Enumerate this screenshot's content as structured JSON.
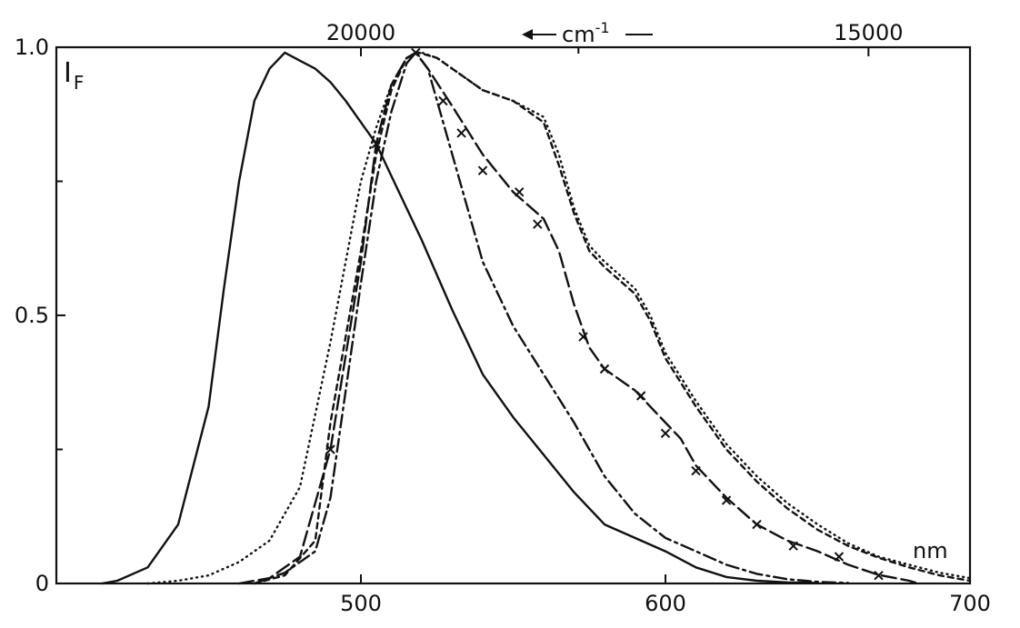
{
  "chart_data": {
    "type": "line",
    "ylabel": "I",
    "ylabel_sub": "F",
    "xlabel": "nm",
    "top_axis_label": "cm",
    "top_axis_label_sup": "-1",
    "xlim": [
      400,
      700
    ],
    "ylim": [
      0,
      1.0
    ],
    "x_ticks": [
      {
        "value": 500,
        "label": "500"
      },
      {
        "value": 600,
        "label": "600"
      },
      {
        "value": 700,
        "label": "700"
      }
    ],
    "y_ticks": [
      {
        "value": 0,
        "label": "0"
      },
      {
        "value": 0.5,
        "label": "0.5"
      },
      {
        "value": 1.0,
        "label": "1.0"
      }
    ],
    "y_minor_ticks": [
      0.25,
      0.75
    ],
    "top_ticks": [
      {
        "value": 20000,
        "label": "20000"
      },
      {
        "value": 15000,
        "label": "15000"
      }
    ],
    "top_minor_ticks": [
      17500
    ],
    "series": [
      {
        "style": "solid",
        "points": [
          [
            415,
            0
          ],
          [
            420,
            0.005
          ],
          [
            430,
            0.03
          ],
          [
            440,
            0.11
          ],
          [
            450,
            0.33
          ],
          [
            455,
            0.55
          ],
          [
            460,
            0.75
          ],
          [
            465,
            0.9
          ],
          [
            470,
            0.96
          ],
          [
            475,
            0.99
          ],
          [
            480,
            0.975
          ],
          [
            485,
            0.96
          ],
          [
            490,
            0.935
          ],
          [
            495,
            0.9
          ],
          [
            500,
            0.86
          ],
          [
            505,
            0.82
          ],
          [
            510,
            0.76
          ],
          [
            520,
            0.64
          ],
          [
            530,
            0.51
          ],
          [
            540,
            0.39
          ],
          [
            550,
            0.31
          ],
          [
            560,
            0.24
          ],
          [
            570,
            0.17
          ],
          [
            580,
            0.11
          ],
          [
            590,
            0.085
          ],
          [
            600,
            0.06
          ],
          [
            610,
            0.03
          ],
          [
            620,
            0.012
          ],
          [
            630,
            0.005
          ],
          [
            640,
            0.002
          ],
          [
            650,
            0.001
          ]
        ]
      },
      {
        "style": "dashdot",
        "points": [
          [
            465,
            0
          ],
          [
            475,
            0.02
          ],
          [
            485,
            0.06
          ],
          [
            490,
            0.16
          ],
          [
            495,
            0.36
          ],
          [
            500,
            0.56
          ],
          [
            505,
            0.75
          ],
          [
            510,
            0.88
          ],
          [
            515,
            0.97
          ],
          [
            518,
            0.99
          ],
          [
            522,
            0.96
          ],
          [
            530,
            0.8
          ],
          [
            540,
            0.6
          ],
          [
            550,
            0.48
          ],
          [
            560,
            0.39
          ],
          [
            570,
            0.3
          ],
          [
            580,
            0.2
          ],
          [
            590,
            0.13
          ],
          [
            600,
            0.085
          ],
          [
            610,
            0.06
          ],
          [
            620,
            0.035
          ],
          [
            630,
            0.018
          ],
          [
            640,
            0.008
          ],
          [
            650,
            0.003
          ],
          [
            660,
            0.001
          ]
        ]
      },
      {
        "style": "dashed-x",
        "points": [
          [
            460,
            0
          ],
          [
            470,
            0.01
          ],
          [
            480,
            0.05
          ],
          [
            490,
            0.25
          ],
          [
            500,
            0.6
          ],
          [
            505,
            0.82
          ],
          [
            510,
            0.93
          ],
          [
            515,
            0.98
          ],
          [
            518,
            0.99
          ],
          [
            522,
            0.96
          ],
          [
            530,
            0.89
          ],
          [
            540,
            0.8
          ],
          [
            550,
            0.73
          ],
          [
            560,
            0.68
          ],
          [
            565,
            0.62
          ],
          [
            570,
            0.52
          ],
          [
            575,
            0.44
          ],
          [
            580,
            0.4
          ],
          [
            590,
            0.36
          ],
          [
            600,
            0.3
          ],
          [
            605,
            0.27
          ],
          [
            610,
            0.22
          ],
          [
            620,
            0.16
          ],
          [
            630,
            0.11
          ],
          [
            640,
            0.08
          ],
          [
            650,
            0.06
          ],
          [
            660,
            0.035
          ],
          [
            670,
            0.016
          ],
          [
            680,
            0.005
          ],
          [
            683,
            0
          ]
        ],
        "markers": [
          [
            490,
            0.25
          ],
          [
            505,
            0.82
          ],
          [
            518,
            0.99
          ],
          [
            527,
            0.9
          ],
          [
            533,
            0.84
          ],
          [
            540,
            0.77
          ],
          [
            552,
            0.73
          ],
          [
            558,
            0.67
          ],
          [
            573,
            0.46
          ],
          [
            580,
            0.4
          ],
          [
            592,
            0.35
          ],
          [
            600,
            0.28
          ],
          [
            610,
            0.21
          ],
          [
            620,
            0.155
          ],
          [
            630,
            0.11
          ],
          [
            642,
            0.07
          ],
          [
            657,
            0.05
          ],
          [
            670,
            0.015
          ]
        ]
      },
      {
        "style": "dotted",
        "points": [
          [
            430,
            0
          ],
          [
            440,
            0.005
          ],
          [
            450,
            0.015
          ],
          [
            460,
            0.04
          ],
          [
            470,
            0.08
          ],
          [
            480,
            0.18
          ],
          [
            490,
            0.45
          ],
          [
            500,
            0.75
          ],
          [
            505,
            0.85
          ],
          [
            510,
            0.93
          ],
          [
            515,
            0.98
          ],
          [
            520,
            0.99
          ],
          [
            525,
            0.98
          ],
          [
            530,
            0.96
          ],
          [
            540,
            0.92
          ],
          [
            550,
            0.9
          ],
          [
            560,
            0.87
          ],
          [
            565,
            0.8
          ],
          [
            570,
            0.7
          ],
          [
            575,
            0.63
          ],
          [
            580,
            0.6
          ],
          [
            590,
            0.55
          ],
          [
            595,
            0.5
          ],
          [
            600,
            0.43
          ],
          [
            610,
            0.34
          ],
          [
            620,
            0.26
          ],
          [
            630,
            0.2
          ],
          [
            640,
            0.15
          ],
          [
            650,
            0.11
          ],
          [
            660,
            0.075
          ],
          [
            670,
            0.05
          ],
          [
            680,
            0.035
          ],
          [
            690,
            0.02
          ],
          [
            700,
            0.01
          ]
        ]
      },
      {
        "style": "dashed",
        "points": [
          [
            465,
            0
          ],
          [
            475,
            0.015
          ],
          [
            485,
            0.08
          ],
          [
            490,
            0.3
          ],
          [
            500,
            0.62
          ],
          [
            505,
            0.8
          ],
          [
            510,
            0.92
          ],
          [
            515,
            0.98
          ],
          [
            519,
            0.99
          ],
          [
            525,
            0.98
          ],
          [
            530,
            0.96
          ],
          [
            540,
            0.92
          ],
          [
            550,
            0.9
          ],
          [
            560,
            0.86
          ],
          [
            565,
            0.78
          ],
          [
            570,
            0.69
          ],
          [
            575,
            0.62
          ],
          [
            580,
            0.59
          ],
          [
            590,
            0.54
          ],
          [
            595,
            0.49
          ],
          [
            600,
            0.42
          ],
          [
            610,
            0.33
          ],
          [
            620,
            0.25
          ],
          [
            630,
            0.19
          ],
          [
            640,
            0.14
          ],
          [
            650,
            0.1
          ],
          [
            660,
            0.07
          ],
          [
            670,
            0.048
          ],
          [
            680,
            0.03
          ],
          [
            690,
            0.015
          ],
          [
            700,
            0.005
          ]
        ]
      }
    ]
  }
}
